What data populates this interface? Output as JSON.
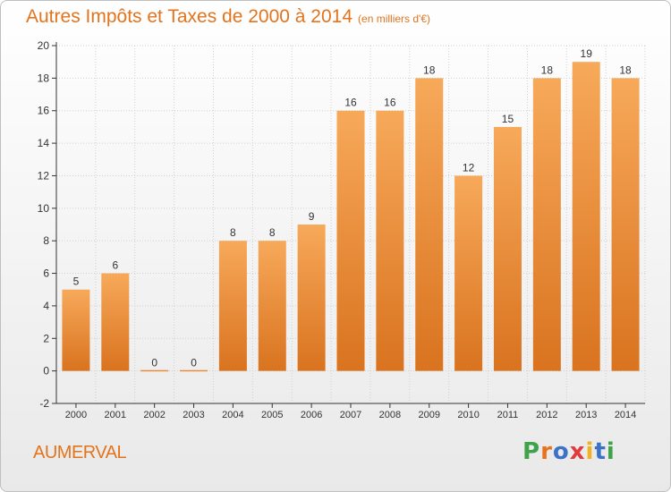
{
  "header": {
    "title": "Autres Impôts et Taxes de 2000 à 2014",
    "unit": "(en milliers d'€)"
  },
  "footer": {
    "commune": "AUMERVAL",
    "brand_letters": [
      "P",
      "r",
      "o",
      "x",
      "i",
      "t",
      "i"
    ],
    "brand_colors": [
      "#3ea24a",
      "#e8731e",
      "#3b73c9",
      "#e23b3b",
      "#f2b21f",
      "#3b73c9",
      "#3ea24a"
    ]
  },
  "colors": {
    "title": "#e2741e",
    "bar_light": "#f7a95a",
    "bar_dark": "#d9731f",
    "axis": "#333333",
    "grid": "#d0d0d0"
  },
  "chart_data": {
    "type": "bar",
    "categories": [
      "2000",
      "2001",
      "2002",
      "2003",
      "2004",
      "2005",
      "2006",
      "2007",
      "2008",
      "2009",
      "2010",
      "2011",
      "2012",
      "2013",
      "2014"
    ],
    "values": [
      5,
      6,
      0,
      0,
      8,
      8,
      9,
      16,
      16,
      18,
      12,
      15,
      18,
      19,
      18
    ],
    "data_labels": [
      "5",
      "6",
      "0",
      "0",
      "8",
      "8",
      "9",
      "16",
      "16",
      "18",
      "12",
      "15",
      "18",
      "19",
      "18"
    ],
    "y_ticks": [
      -2,
      0,
      2,
      4,
      6,
      8,
      10,
      12,
      14,
      16,
      18,
      20
    ],
    "ylim": [
      -2,
      20
    ],
    "grid": true
  }
}
